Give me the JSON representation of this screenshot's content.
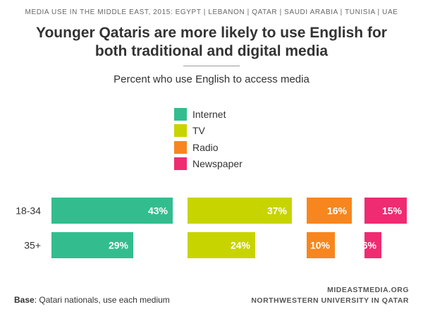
{
  "header": {
    "kicker": "MEDIA USE IN THE MIDDLE EAST, 2015: EGYPT | LEBANON | QATAR | SAUDI ARABIA | TUNISIA | UAE",
    "title_line1": "Younger Qataris are more likely to use English for",
    "title_line2": "both traditional and digital media"
  },
  "footer": {
    "base_label": "Base",
    "base_text": ": Qatari nationals, use each medium",
    "source_line1": "MIDEASTMEDIA.ORG",
    "source_line2": "NORTHWESTERN UNIVERSITY IN QATAR"
  },
  "colors": {
    "Internet": "#33bd8f",
    "TV": "#c8d400",
    "Radio": "#f7861e",
    "Newspaper": "#ef2b71",
    "label_white": "#ffffff"
  },
  "chart_data": {
    "type": "bar",
    "orientation": "horizontal",
    "subtitle": "Percent who use English to access media",
    "categories": [
      "18-34",
      "35+"
    ],
    "series": [
      {
        "name": "Internet",
        "values": [
          43,
          29
        ],
        "labels": [
          "43%",
          "29%"
        ]
      },
      {
        "name": "TV",
        "values": [
          37,
          24
        ],
        "labels": [
          "37%",
          "24%"
        ]
      },
      {
        "name": "Radio",
        "values": [
          16,
          10
        ],
        "labels": [
          "16%",
          "10%"
        ]
      },
      {
        "name": "Newspaper",
        "values": [
          15,
          6
        ],
        "labels": [
          "15%",
          "6%"
        ]
      }
    ],
    "legend": "top-center",
    "grid": false
  }
}
